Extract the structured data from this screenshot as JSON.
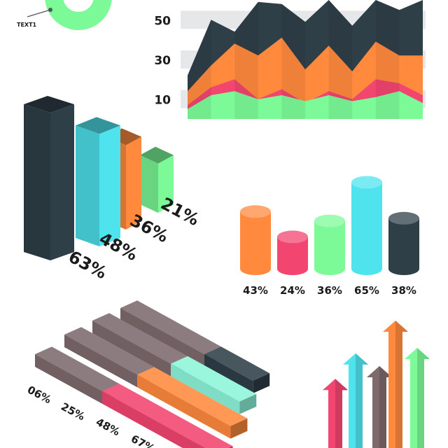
{
  "colors": {
    "dark": "#2f3f48",
    "cyan": "#4fe3ee",
    "orange": "#ff8a3d",
    "green": "#7dfa98",
    "pink": "#f2456f",
    "mauve": "#7e6a6d",
    "mint": "#8cf6da",
    "band": "#e8e9ea"
  },
  "donut_label": "TEXT1",
  "chart_data": [
    {
      "type": "area",
      "id": "layered-area",
      "yticks": [
        50,
        30,
        10
      ],
      "series": [
        {
          "color_key": "dark",
          "values": [
            22,
            50,
            44,
            59,
            58,
            49,
            60,
            47,
            60,
            55,
            60
          ]
        },
        {
          "color_key": "orange",
          "values": [
            14,
            27,
            38,
            32,
            41,
            25,
            37,
            24,
            39,
            32,
            32
          ]
        },
        {
          "color_key": "pink",
          "values": [
            7,
            16,
            20,
            10,
            15,
            8,
            14,
            10,
            20,
            18,
            12
          ]
        },
        {
          "color_key": "green",
          "values": [
            5,
            12,
            14,
            10,
            12,
            9,
            12,
            9,
            11,
            14,
            8
          ]
        }
      ]
    },
    {
      "type": "bar",
      "id": "iso-bars",
      "values": [
        63,
        48,
        36,
        21
      ],
      "labels": [
        "63%",
        "48%",
        "36%",
        "21%"
      ],
      "color_keys": [
        "dark",
        "cyan",
        "orange",
        "green"
      ]
    },
    {
      "type": "bar",
      "id": "cylinders",
      "values": [
        43,
        24,
        36,
        65,
        38
      ],
      "labels": [
        "43%",
        "24%",
        "36%",
        "65%",
        "38%"
      ],
      "color_keys": [
        "orange",
        "pink",
        "green",
        "cyan",
        "dark"
      ]
    },
    {
      "type": "bar",
      "id": "iso-horizontal",
      "values": [
        6,
        25,
        48,
        67
      ],
      "labels": [
        "06%",
        "25%",
        "48%",
        "67%"
      ],
      "color_keys": [
        "dark",
        "mint",
        "orange",
        "pink"
      ]
    },
    {
      "type": "bar",
      "id": "arrows",
      "values": [
        38,
        52,
        45,
        70,
        55
      ],
      "color_keys": [
        "pink",
        "cyan",
        "mauve",
        "orange",
        "green"
      ]
    }
  ]
}
